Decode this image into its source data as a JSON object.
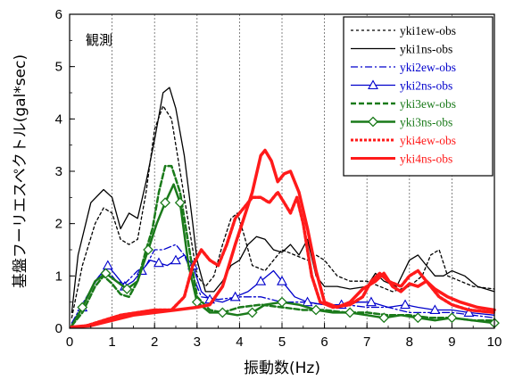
{
  "chart_data": {
    "type": "line",
    "title": "",
    "annotation": "観測",
    "xlabel": "振動数(Hz)",
    "ylabel": "基盤フーリエスペクトル(gal*sec)",
    "xlim": [
      0,
      10
    ],
    "ylim": [
      0,
      6
    ],
    "xticks": [
      "0",
      "1",
      "2",
      "3",
      "4",
      "5",
      "6",
      "7",
      "8",
      "9",
      "10"
    ],
    "yticks": [
      "0",
      "1",
      "2",
      "3",
      "4",
      "5",
      "6"
    ],
    "grid": "vertical dotted",
    "legend_position": "top-right",
    "series": [
      {
        "name": "yki1ew-obs",
        "color": "#000000",
        "dash": "3,3",
        "width": 1.3,
        "marker": "none",
        "points": [
          [
            0.05,
            0.2
          ],
          [
            0.3,
            1.2
          ],
          [
            0.6,
            2.0
          ],
          [
            0.8,
            2.3
          ],
          [
            1,
            2.2
          ],
          [
            1.2,
            1.7
          ],
          [
            1.4,
            1.6
          ],
          [
            1.6,
            1.7
          ],
          [
            1.8,
            2.6
          ],
          [
            2.0,
            3.8
          ],
          [
            2.2,
            4.25
          ],
          [
            2.4,
            4.0
          ],
          [
            2.6,
            3.0
          ],
          [
            2.8,
            2.0
          ],
          [
            3.0,
            1.0
          ],
          [
            3.2,
            0.8
          ],
          [
            3.4,
            1.0
          ],
          [
            3.6,
            1.6
          ],
          [
            3.8,
            2.1
          ],
          [
            3.95,
            2.2
          ],
          [
            4.1,
            1.8
          ],
          [
            4.3,
            1.2
          ],
          [
            4.6,
            1.1
          ],
          [
            4.8,
            1.3
          ],
          [
            5.0,
            1.5
          ],
          [
            5.3,
            1.4
          ],
          [
            5.6,
            1.3
          ],
          [
            5.8,
            1.4
          ],
          [
            6.0,
            1.3
          ],
          [
            6.3,
            1.0
          ],
          [
            6.6,
            0.9
          ],
          [
            7.0,
            0.9
          ],
          [
            7.3,
            0.8
          ],
          [
            7.6,
            0.7
          ],
          [
            8.0,
            0.8
          ],
          [
            8.3,
            1.0
          ],
          [
            8.5,
            1.4
          ],
          [
            8.7,
            1.5
          ],
          [
            8.9,
            1.0
          ],
          [
            9.2,
            0.9
          ],
          [
            9.5,
            0.8
          ],
          [
            10,
            0.75
          ]
        ]
      },
      {
        "name": "yki1ns-obs",
        "color": "#000000",
        "dash": "",
        "width": 1.3,
        "marker": "none",
        "points": [
          [
            0.05,
            0.3
          ],
          [
            0.2,
            1.4
          ],
          [
            0.5,
            2.4
          ],
          [
            0.8,
            2.65
          ],
          [
            1.0,
            2.5
          ],
          [
            1.2,
            1.9
          ],
          [
            1.4,
            2.2
          ],
          [
            1.6,
            2.1
          ],
          [
            1.8,
            2.8
          ],
          [
            2.0,
            3.6
          ],
          [
            2.2,
            4.5
          ],
          [
            2.35,
            4.6
          ],
          [
            2.5,
            4.2
          ],
          [
            2.7,
            3.3
          ],
          [
            2.9,
            2.0
          ],
          [
            3.0,
            1.3
          ],
          [
            3.2,
            0.7
          ],
          [
            3.4,
            0.7
          ],
          [
            3.6,
            0.9
          ],
          [
            3.8,
            1.2
          ],
          [
            4.0,
            1.3
          ],
          [
            4.2,
            1.6
          ],
          [
            4.4,
            1.75
          ],
          [
            4.6,
            1.7
          ],
          [
            4.8,
            1.5
          ],
          [
            5.0,
            1.45
          ],
          [
            5.2,
            1.6
          ],
          [
            5.4,
            1.4
          ],
          [
            5.6,
            1.7
          ],
          [
            5.8,
            1.0
          ],
          [
            6.0,
            0.8
          ],
          [
            6.3,
            0.8
          ],
          [
            6.6,
            0.75
          ],
          [
            7.0,
            0.8
          ],
          [
            7.2,
            1.05
          ],
          [
            7.4,
            0.9
          ],
          [
            7.7,
            0.8
          ],
          [
            8.0,
            1.3
          ],
          [
            8.2,
            1.4
          ],
          [
            8.4,
            1.2
          ],
          [
            8.6,
            1.0
          ],
          [
            8.8,
            1.0
          ],
          [
            9.0,
            1.1
          ],
          [
            9.3,
            1.0
          ],
          [
            9.6,
            0.8
          ],
          [
            10,
            0.7
          ]
        ]
      },
      {
        "name": "yki2ew-obs",
        "color": "#0000cc",
        "dash": "8,3,2,3",
        "width": 1.3,
        "marker": "none",
        "points": [
          [
            0.05,
            0.1
          ],
          [
            0.4,
            0.6
          ],
          [
            0.7,
            1.0
          ],
          [
            0.9,
            1.1
          ],
          [
            1.1,
            0.9
          ],
          [
            1.3,
            0.85
          ],
          [
            1.6,
            1.1
          ],
          [
            1.8,
            1.2
          ],
          [
            2.0,
            1.5
          ],
          [
            2.2,
            1.5
          ],
          [
            2.5,
            1.6
          ],
          [
            2.7,
            1.4
          ],
          [
            2.9,
            1.0
          ],
          [
            3.1,
            0.6
          ],
          [
            3.5,
            0.55
          ],
          [
            4.0,
            0.6
          ],
          [
            4.5,
            0.6
          ],
          [
            5.0,
            0.5
          ],
          [
            5.5,
            0.5
          ],
          [
            6.0,
            0.45
          ],
          [
            6.5,
            0.45
          ],
          [
            7.0,
            0.4
          ],
          [
            7.5,
            0.4
          ],
          [
            8.0,
            0.3
          ],
          [
            8.5,
            0.3
          ],
          [
            9.0,
            0.3
          ],
          [
            9.5,
            0.25
          ],
          [
            10,
            0.2
          ]
        ]
      },
      {
        "name": "yki2ns-obs",
        "color": "#0000cc",
        "dash": "",
        "width": 1.3,
        "marker": "triangle",
        "points": [
          [
            0.05,
            0.1
          ],
          [
            0.3,
            0.4
          ],
          [
            0.6,
            0.9
          ],
          [
            0.9,
            1.2
          ],
          [
            1.1,
            1.0
          ],
          [
            1.3,
            0.8
          ],
          [
            1.5,
            0.9
          ],
          [
            1.7,
            1.1
          ],
          [
            1.9,
            1.3
          ],
          [
            2.1,
            1.25
          ],
          [
            2.3,
            1.2
          ],
          [
            2.5,
            1.3
          ],
          [
            2.7,
            1.4
          ],
          [
            2.9,
            1.2
          ],
          [
            3.1,
            0.7
          ],
          [
            3.3,
            0.55
          ],
          [
            3.6,
            0.5
          ],
          [
            3.9,
            0.6
          ],
          [
            4.2,
            0.7
          ],
          [
            4.5,
            0.9
          ],
          [
            4.8,
            1.1
          ],
          [
            5.0,
            0.9
          ],
          [
            5.3,
            0.6
          ],
          [
            5.6,
            0.5
          ],
          [
            6.0,
            0.45
          ],
          [
            6.4,
            0.45
          ],
          [
            6.8,
            0.5
          ],
          [
            7.1,
            0.5
          ],
          [
            7.5,
            0.4
          ],
          [
            7.9,
            0.45
          ],
          [
            8.2,
            0.4
          ],
          [
            8.6,
            0.35
          ],
          [
            9.0,
            0.35
          ],
          [
            9.4,
            0.3
          ],
          [
            10,
            0.25
          ]
        ]
      },
      {
        "name": "yki3ew-obs",
        "color": "#1a7a1a",
        "dash": "6,3",
        "width": 2.5,
        "marker": "none",
        "points": [
          [
            0.05,
            0.05
          ],
          [
            0.3,
            0.3
          ],
          [
            0.6,
            0.8
          ],
          [
            0.8,
            1.0
          ],
          [
            1.0,
            0.85
          ],
          [
            1.2,
            0.65
          ],
          [
            1.4,
            0.6
          ],
          [
            1.6,
            0.9
          ],
          [
            1.8,
            1.5
          ],
          [
            1.95,
            1.9
          ],
          [
            2.1,
            2.6
          ],
          [
            2.25,
            3.1
          ],
          [
            2.4,
            3.1
          ],
          [
            2.6,
            2.6
          ],
          [
            2.8,
            1.6
          ],
          [
            3.0,
            0.6
          ],
          [
            3.3,
            0.35
          ],
          [
            3.6,
            0.3
          ],
          [
            4.0,
            0.4
          ],
          [
            4.5,
            0.45
          ],
          [
            5.0,
            0.4
          ],
          [
            5.5,
            0.35
          ],
          [
            6.0,
            0.35
          ],
          [
            6.5,
            0.3
          ],
          [
            7.0,
            0.3
          ],
          [
            7.5,
            0.25
          ],
          [
            8.0,
            0.25
          ],
          [
            8.5,
            0.2
          ],
          [
            9.0,
            0.2
          ],
          [
            9.5,
            0.15
          ],
          [
            10,
            0.15
          ]
        ]
      },
      {
        "name": "yki3ns-obs",
        "color": "#1a7a1a",
        "dash": "",
        "width": 2.5,
        "marker": "diamond",
        "points": [
          [
            0.05,
            0.05
          ],
          [
            0.3,
            0.4
          ],
          [
            0.6,
            0.9
          ],
          [
            0.85,
            1.05
          ],
          [
            1.1,
            0.9
          ],
          [
            1.35,
            0.75
          ],
          [
            1.6,
            0.9
          ],
          [
            1.85,
            1.5
          ],
          [
            2.05,
            2.0
          ],
          [
            2.25,
            2.4
          ],
          [
            2.45,
            2.75
          ],
          [
            2.6,
            2.4
          ],
          [
            2.8,
            1.2
          ],
          [
            3.0,
            0.5
          ],
          [
            3.3,
            0.3
          ],
          [
            3.6,
            0.3
          ],
          [
            3.95,
            0.25
          ],
          [
            4.3,
            0.3
          ],
          [
            4.6,
            0.45
          ],
          [
            5.0,
            0.5
          ],
          [
            5.4,
            0.45
          ],
          [
            5.8,
            0.35
          ],
          [
            6.2,
            0.3
          ],
          [
            6.6,
            0.3
          ],
          [
            7.0,
            0.25
          ],
          [
            7.4,
            0.2
          ],
          [
            7.8,
            0.25
          ],
          [
            8.2,
            0.2
          ],
          [
            8.6,
            0.15
          ],
          [
            9.0,
            0.2
          ],
          [
            9.5,
            0.15
          ],
          [
            10,
            0.1
          ]
        ]
      },
      {
        "name": "yki4ew-obs",
        "color": "#ff1a1a",
        "dash": "3,2",
        "width": 3.5,
        "marker": "none",
        "points": [
          [
            0.05,
            0.02
          ],
          [
            0.4,
            0.05
          ],
          [
            0.8,
            0.15
          ],
          [
            1.2,
            0.25
          ],
          [
            1.6,
            0.3
          ],
          [
            2.0,
            0.35
          ],
          [
            2.4,
            0.35
          ],
          [
            2.7,
            0.6
          ],
          [
            2.9,
            1.2
          ],
          [
            3.1,
            1.5
          ],
          [
            3.3,
            1.3
          ],
          [
            3.5,
            1.2
          ],
          [
            3.7,
            1.6
          ],
          [
            3.9,
            2.1
          ],
          [
            4.1,
            2.3
          ],
          [
            4.3,
            2.5
          ],
          [
            4.5,
            2.5
          ],
          [
            4.7,
            2.4
          ],
          [
            4.9,
            2.6
          ],
          [
            5.05,
            2.4
          ],
          [
            5.2,
            2.2
          ],
          [
            5.35,
            2.5
          ],
          [
            5.5,
            2.0
          ],
          [
            5.7,
            1.0
          ],
          [
            5.9,
            0.5
          ],
          [
            6.2,
            0.4
          ],
          [
            6.6,
            0.45
          ],
          [
            6.9,
            0.6
          ],
          [
            7.1,
            0.9
          ],
          [
            7.3,
            1.05
          ],
          [
            7.5,
            0.9
          ],
          [
            7.8,
            0.8
          ],
          [
            8.0,
            1.0
          ],
          [
            8.2,
            1.1
          ],
          [
            8.4,
            0.9
          ],
          [
            8.7,
            0.6
          ],
          [
            9.0,
            0.45
          ],
          [
            9.4,
            0.35
          ],
          [
            10,
            0.3
          ]
        ]
      },
      {
        "name": "yki4ns-obs",
        "color": "#ff1a1a",
        "dash": "",
        "width": 3.5,
        "marker": "none",
        "points": [
          [
            0.05,
            0.02
          ],
          [
            0.5,
            0.05
          ],
          [
            1.0,
            0.15
          ],
          [
            1.5,
            0.25
          ],
          [
            2.0,
            0.3
          ],
          [
            2.5,
            0.35
          ],
          [
            3.0,
            0.4
          ],
          [
            3.3,
            0.45
          ],
          [
            3.6,
            0.8
          ],
          [
            3.9,
            1.6
          ],
          [
            4.1,
            2.1
          ],
          [
            4.3,
            2.6
          ],
          [
            4.5,
            3.3
          ],
          [
            4.6,
            3.4
          ],
          [
            4.75,
            3.2
          ],
          [
            4.9,
            2.8
          ],
          [
            5.05,
            2.95
          ],
          [
            5.2,
            3.0
          ],
          [
            5.4,
            2.6
          ],
          [
            5.6,
            1.9
          ],
          [
            5.8,
            1.1
          ],
          [
            6.0,
            0.5
          ],
          [
            6.3,
            0.4
          ],
          [
            6.6,
            0.5
          ],
          [
            6.9,
            0.75
          ],
          [
            7.2,
            0.9
          ],
          [
            7.4,
            1.05
          ],
          [
            7.6,
            0.8
          ],
          [
            7.8,
            0.7
          ],
          [
            8.0,
            0.85
          ],
          [
            8.2,
            0.8
          ],
          [
            8.4,
            0.9
          ],
          [
            8.6,
            0.75
          ],
          [
            8.9,
            0.6
          ],
          [
            9.2,
            0.5
          ],
          [
            9.6,
            0.4
          ],
          [
            10,
            0.35
          ]
        ]
      }
    ]
  }
}
